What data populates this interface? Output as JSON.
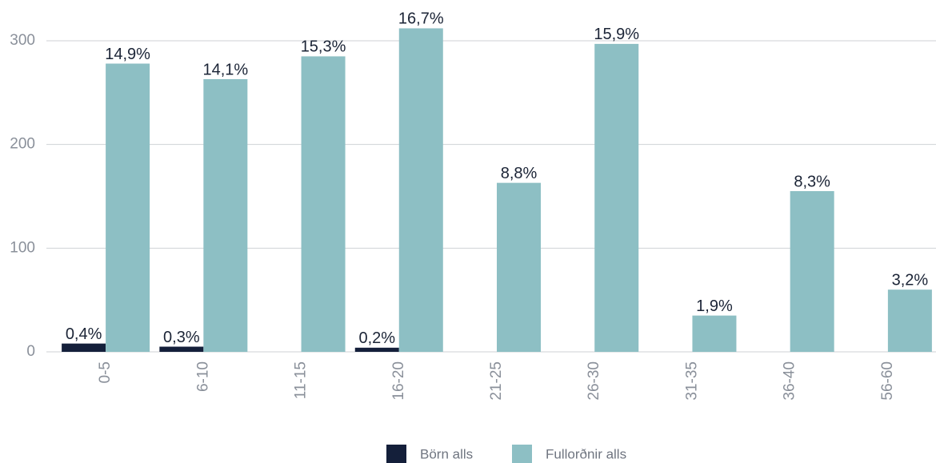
{
  "chart_data": {
    "type": "bar",
    "categories": [
      "0-5",
      "6-10",
      "11-15",
      "16-20",
      "21-25",
      "26-30",
      "31-35",
      "36-40",
      "56-60"
    ],
    "series": [
      {
        "name": "Börn alls",
        "color": "#141f3a",
        "values": [
          8,
          5,
          null,
          4,
          null,
          null,
          null,
          null,
          null
        ],
        "value_labels": [
          "0,4%",
          "0,3%",
          null,
          "0,2%",
          null,
          null,
          null,
          null,
          null
        ]
      },
      {
        "name": "Fullorðnir alls",
        "color": "#8dbfc4",
        "values": [
          278,
          263,
          285,
          312,
          163,
          297,
          35,
          155,
          60
        ],
        "value_labels": [
          "14,9%",
          "14,1%",
          "15,3%",
          "16,7%",
          "8,8%",
          "15,9%",
          "1,9%",
          "8,3%",
          "3,2%"
        ]
      }
    ],
    "ylim": [
      0,
      300
    ],
    "yticks": [
      0,
      100,
      200,
      300
    ],
    "grid": true,
    "legend": "bottom"
  }
}
